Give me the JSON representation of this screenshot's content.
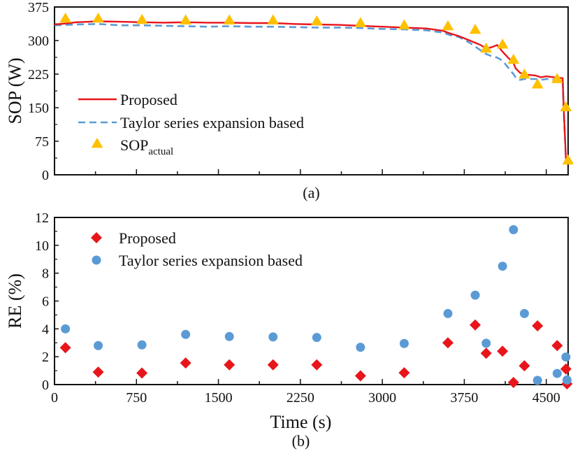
{
  "chart_data": [
    {
      "type": "line",
      "panel_label": "(a)",
      "title": "",
      "xlabel": "",
      "ylabel": "SOP (W)",
      "xlim": [
        0,
        4700
      ],
      "ylim": [
        0,
        375
      ],
      "yticks": [
        0,
        75,
        150,
        225,
        300,
        375
      ],
      "ytick_labels": [
        "0",
        "75",
        "150",
        "225",
        "300",
        "375"
      ],
      "xticks": [
        0,
        375,
        750,
        1125,
        1500,
        1875,
        2250,
        2625,
        3000,
        3375,
        3750,
        4125,
        4500
      ],
      "grid": false,
      "legend": "center-left",
      "legend_entries": [
        {
          "label": "Proposed",
          "marker": "line",
          "color": "#e8151b"
        },
        {
          "label": "Taylor series expansion based",
          "marker": "dashed-line",
          "color": "#5b9bd5"
        },
        {
          "label": "SOP",
          "subscript": "actual",
          "marker": "triangle",
          "color": "#ffc000"
        }
      ],
      "series": [
        {
          "name": "Proposed",
          "color": "#e8151b",
          "x": [
            0,
            100,
            200,
            400,
            600,
            800,
            1000,
            1200,
            1400,
            1600,
            1800,
            2000,
            2200,
            2400,
            2600,
            2800,
            3000,
            3200,
            3400,
            3550,
            3620,
            3700,
            3800,
            3900,
            3950,
            4000,
            4050,
            4100,
            4150,
            4200,
            4220,
            4260,
            4300,
            4400,
            4450,
            4500,
            4600,
            4650,
            4660,
            4680
          ],
          "y": [
            336,
            338,
            341,
            343,
            342,
            341,
            340,
            341,
            340,
            340,
            339,
            339,
            337,
            336,
            335,
            333,
            331,
            329,
            327,
            322,
            316,
            310,
            300,
            290,
            282,
            285,
            290,
            275,
            262,
            250,
            238,
            228,
            224,
            222,
            218,
            220,
            217,
            216,
            150,
            35
          ]
        },
        {
          "name": "Taylor series expansion based",
          "color": "#5b9bd5",
          "x": [
            0,
            100,
            200,
            400,
            600,
            800,
            1000,
            1200,
            1400,
            1600,
            1800,
            2000,
            2200,
            2400,
            2600,
            2800,
            3000,
            3200,
            3400,
            3550,
            3620,
            3700,
            3800,
            3900,
            3950,
            4000,
            4050,
            4100,
            4150,
            4200,
            4220,
            4260,
            4300,
            4400,
            4450,
            4500,
            4600,
            4650,
            4660,
            4680
          ],
          "y": [
            334,
            335,
            336,
            337,
            334,
            334,
            333,
            332,
            331,
            332,
            331,
            331,
            330,
            329,
            329,
            328,
            326,
            325,
            323,
            318,
            312,
            308,
            295,
            278,
            270,
            265,
            262,
            255,
            240,
            225,
            218,
            212,
            214,
            214,
            212,
            214,
            212,
            212,
            140,
            35
          ]
        },
        {
          "name": "SOP_actual",
          "color": "#ffc000",
          "marker": "triangle",
          "x": [
            100,
            400,
            800,
            1200,
            1600,
            2000,
            2400,
            2800,
            3200,
            3600,
            3850,
            3950,
            4100,
            4200,
            4300,
            4420,
            4600,
            4680,
            4700
          ],
          "y": [
            350,
            350,
            347,
            346,
            346,
            346,
            344,
            340,
            335,
            333,
            325,
            283,
            292,
            258,
            225,
            203,
            215,
            152,
            33
          ]
        }
      ]
    },
    {
      "type": "scatter",
      "panel_label": "(b)",
      "title": "",
      "xlabel": "Time (s)",
      "ylabel": "RE (%)",
      "xlim": [
        0,
        4700
      ],
      "ylim": [
        0,
        12
      ],
      "yticks": [
        0,
        2,
        4,
        6,
        8,
        10,
        12
      ],
      "ytick_labels": [
        "0",
        "2",
        "4",
        "6",
        "8",
        "10",
        "12"
      ],
      "xticks": [
        0,
        375,
        750,
        1125,
        1500,
        1875,
        2250,
        2625,
        3000,
        3375,
        3750,
        4125,
        4500
      ],
      "xtick_labels": [
        "0",
        "",
        "750",
        "",
        "1500",
        "",
        "2250",
        "",
        "3000",
        "",
        "3750",
        "",
        "4500"
      ],
      "grid": false,
      "legend": "top-left",
      "legend_entries": [
        {
          "label": "Proposed",
          "marker": "diamond",
          "color": "#e8151b"
        },
        {
          "label": "Taylor series expansion based",
          "marker": "circle",
          "color": "#5b9bd5"
        }
      ],
      "series": [
        {
          "name": "Proposed",
          "color": "#e8151b",
          "marker": "diamond",
          "x": [
            100,
            400,
            800,
            1200,
            1600,
            2000,
            2400,
            2800,
            3200,
            3600,
            3850,
            3950,
            4100,
            4200,
            4300,
            4420,
            4600,
            4680,
            4690
          ],
          "y": [
            2.65,
            0.9,
            0.83,
            1.55,
            1.42,
            1.42,
            1.42,
            0.63,
            0.85,
            3.0,
            4.28,
            2.25,
            2.4,
            0.15,
            1.35,
            4.22,
            2.8,
            1.12,
            0.05
          ]
        },
        {
          "name": "Taylor series expansion based",
          "color": "#5b9bd5",
          "marker": "circle",
          "x": [
            100,
            400,
            800,
            1200,
            1600,
            2000,
            2400,
            2800,
            3200,
            3600,
            3850,
            3950,
            4100,
            4200,
            4300,
            4420,
            4600,
            4680,
            4690
          ],
          "y": [
            4.0,
            2.8,
            2.85,
            3.6,
            3.45,
            3.42,
            3.38,
            2.68,
            2.95,
            5.1,
            6.42,
            2.97,
            8.5,
            11.12,
            5.1,
            0.3,
            0.8,
            1.98,
            0.33
          ]
        }
      ]
    }
  ]
}
